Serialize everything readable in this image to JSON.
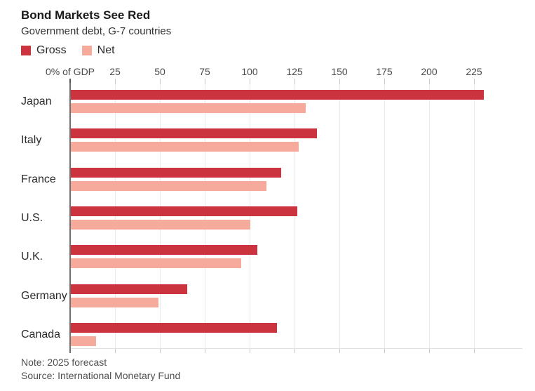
{
  "header": {
    "title": "Bond Markets See Red",
    "subtitle": "Government debt, G-7 countries"
  },
  "legend": [
    {
      "label": "Gross",
      "color": "#cb333e"
    },
    {
      "label": "Net",
      "color": "#f6aa9b"
    }
  ],
  "footer": {
    "note": "Note: 2025 forecast",
    "source": "Source: International Monetary Fund"
  },
  "chart_data": {
    "type": "bar",
    "orientation": "horizontal",
    "title": "Bond Markets See Red",
    "subtitle": "Government debt, G-7 countries",
    "xlabel": "% of GDP",
    "ylabel": "",
    "xlim": [
      0,
      250
    ],
    "grid": true,
    "legend_position": "top-left",
    "categories": [
      "Japan",
      "Italy",
      "France",
      "U.S.",
      "U.K.",
      "Germany",
      "Canada"
    ],
    "series": [
      {
        "name": "Gross",
        "color": "#cb333e",
        "values": [
          230,
          137,
          117,
          126,
          104,
          65,
          115
        ]
      },
      {
        "name": "Net",
        "color": "#f6aa9b",
        "values": [
          131,
          127,
          109,
          100,
          95,
          49,
          14
        ]
      }
    ],
    "xticks": [
      {
        "value": 0,
        "label": "0% of GDP"
      },
      {
        "value": 25,
        "label": "25"
      },
      {
        "value": 50,
        "label": "50"
      },
      {
        "value": 75,
        "label": "75"
      },
      {
        "value": 100,
        "label": "100"
      },
      {
        "value": 125,
        "label": "125"
      },
      {
        "value": 150,
        "label": "150"
      },
      {
        "value": 175,
        "label": "175"
      },
      {
        "value": 200,
        "label": "200"
      },
      {
        "value": 225,
        "label": "225"
      }
    ]
  }
}
